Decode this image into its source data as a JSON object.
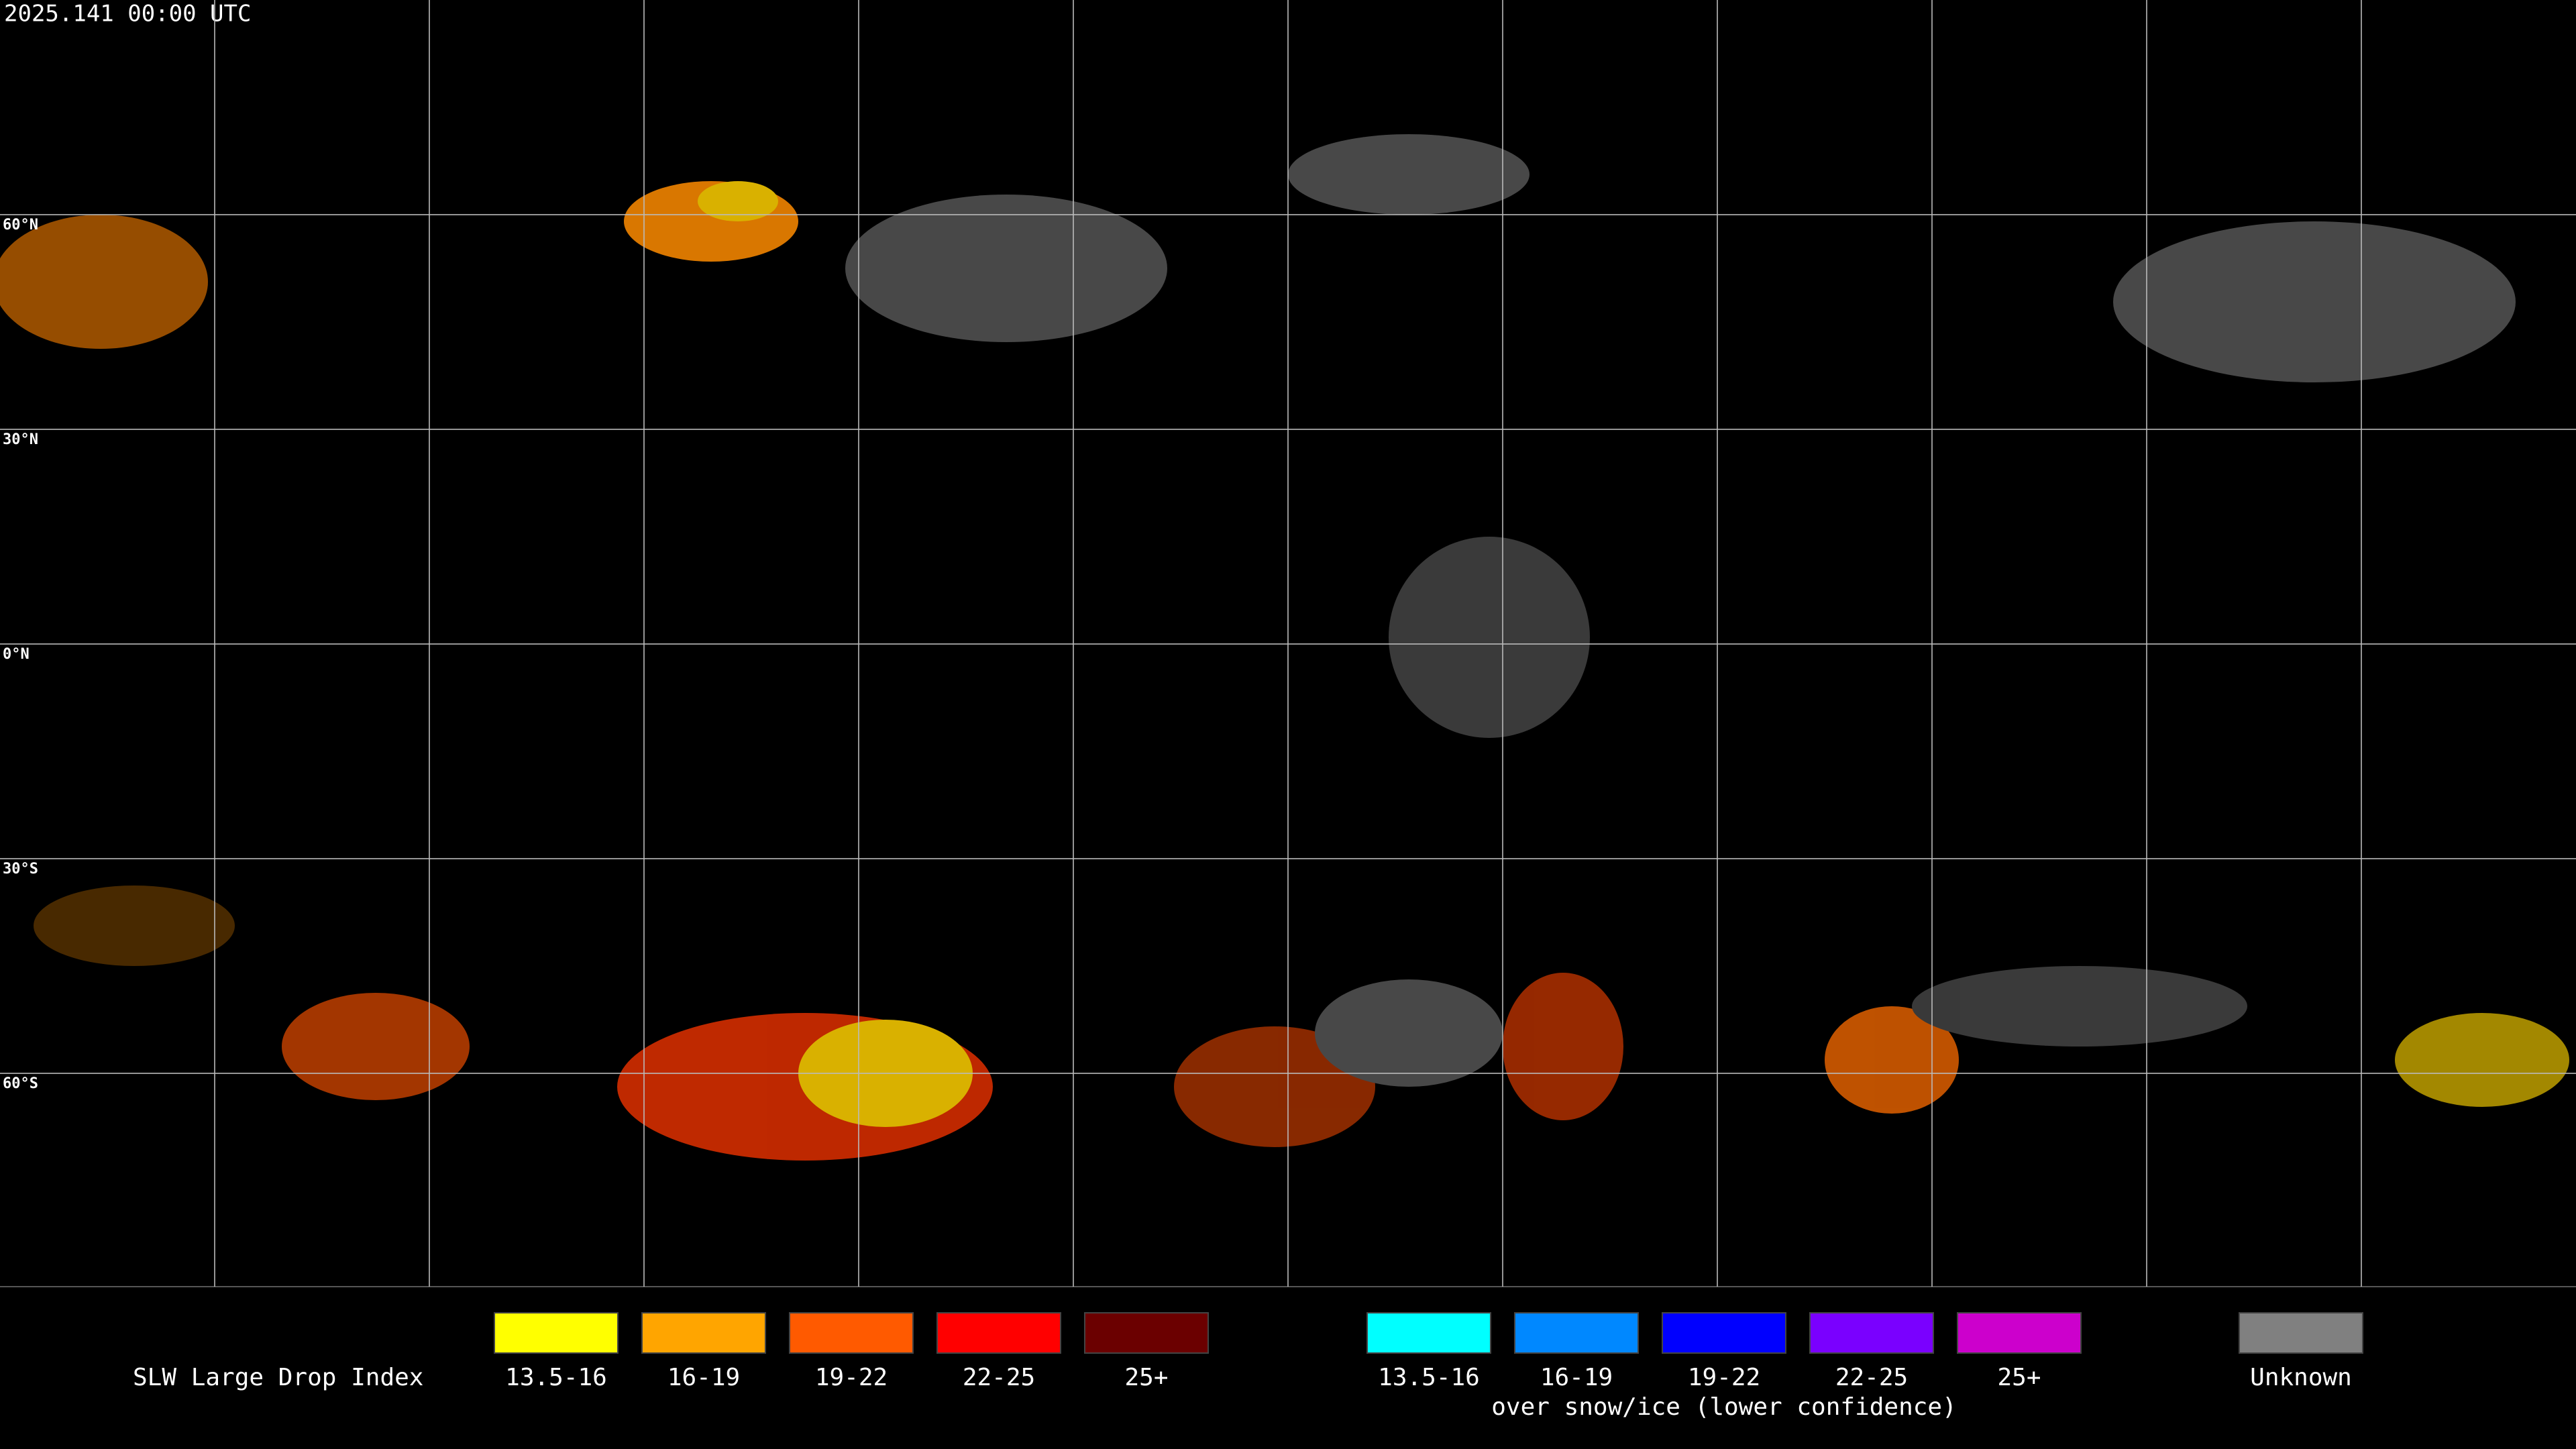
{
  "timestamp": "2025.141 00:00 UTC",
  "latitude_labels": [
    "60°N",
    "30°N",
    "0°N",
    "30°S",
    "60°S"
  ],
  "legend": {
    "title": "SLW Large Drop Index",
    "groups": [
      {
        "items": [
          {
            "label": "13.5-16",
            "color": "#ffff00"
          },
          {
            "label": "16-19",
            "color": "#ffa500"
          },
          {
            "label": "19-22",
            "color": "#ff5a00"
          },
          {
            "label": "22-25",
            "color": "#ff0000"
          },
          {
            "label": "25+",
            "color": "#6b0000"
          }
        ]
      },
      {
        "items": [
          {
            "label": "13.5-16",
            "color": "#00ffff"
          },
          {
            "label": "16-19",
            "color": "#0088ff"
          },
          {
            "label": "19-22",
            "color": "#0000ff"
          },
          {
            "label": "22-25",
            "color": "#7a00ff"
          },
          {
            "label": "25+",
            "color": "#cc00cc"
          }
        ],
        "caption": "over snow/ice (lower confidence)"
      },
      {
        "items": [
          {
            "label": "Unknown",
            "color": "#808080"
          }
        ]
      }
    ]
  }
}
